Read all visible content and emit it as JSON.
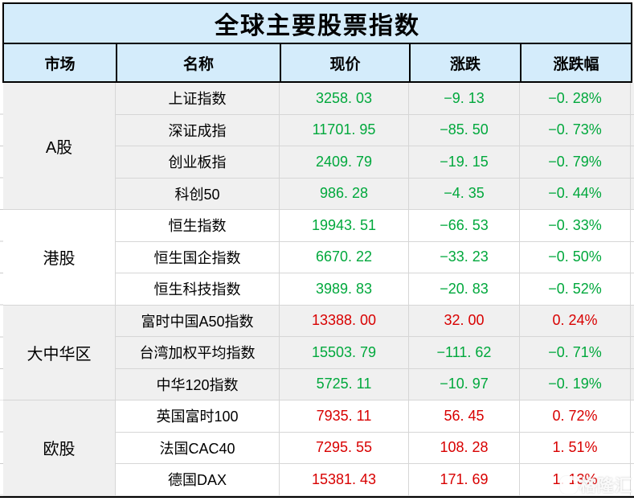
{
  "title": "全球主要股票指数",
  "columns": {
    "market": "市场",
    "name": "名称",
    "price": "现价",
    "change": "涨跌",
    "pct": "涨跌幅"
  },
  "groups": [
    {
      "market": "A股",
      "rows": [
        {
          "name": "上证指数",
          "price": "3258. 03",
          "change": "−9. 13",
          "pct": "−0. 28%",
          "dir": "down"
        },
        {
          "name": "深证成指",
          "price": "11701. 95",
          "change": "−85. 50",
          "pct": "−0. 73%",
          "dir": "down"
        },
        {
          "name": "创业板指",
          "price": "2409. 79",
          "change": "−19. 15",
          "pct": "−0. 79%",
          "dir": "down"
        },
        {
          "name": "科创50",
          "price": "986. 28",
          "change": "−4. 35",
          "pct": "−0. 44%",
          "dir": "down"
        }
      ]
    },
    {
      "market": "港股",
      "rows": [
        {
          "name": "恒生指数",
          "price": "19943. 51",
          "change": "−66. 53",
          "pct": "−0. 33%",
          "dir": "down"
        },
        {
          "name": "恒生国企指数",
          "price": "6670. 22",
          "change": "−33. 23",
          "pct": "−0. 50%",
          "dir": "down"
        },
        {
          "name": "恒生科技指数",
          "price": "3989. 83",
          "change": "−20. 83",
          "pct": "−0. 52%",
          "dir": "down"
        }
      ]
    },
    {
      "market": "大中华区",
      "rows": [
        {
          "name": "富时中国A50指数",
          "price": "13388. 00",
          "change": "32. 00",
          "pct": "0. 24%",
          "dir": "up"
        },
        {
          "name": "台湾加权平均指数",
          "price": "15503. 79",
          "change": "−111. 62",
          "pct": "−0. 71%",
          "dir": "down"
        },
        {
          "name": "中华120指数",
          "price": "5725. 11",
          "change": "−10. 97",
          "pct": "−0. 19%",
          "dir": "down"
        }
      ]
    },
    {
      "market": "欧股",
      "rows": [
        {
          "name": "英国富时100",
          "price": "7935. 11",
          "change": "56. 45",
          "pct": "0. 72%",
          "dir": "up"
        },
        {
          "name": "法国CAC40",
          "price": "7295. 55",
          "change": "108. 28",
          "pct": "1. 51%",
          "dir": "up"
        },
        {
          "name": "德国DAX",
          "price": "15381. 43",
          "change": "171. 69",
          "pct": "1. 13%",
          "dir": "up"
        }
      ]
    }
  ],
  "watermark": {
    "text": "格隆汇"
  },
  "colors": {
    "up_red": "#d80000",
    "down_green": "#00a83c",
    "header_bg": "#d4ecfb",
    "stripe_gray": "#f0f0f0",
    "grid_line": "#d6d6d6",
    "outer_border": "#000000"
  },
  "chart_data": {
    "type": "table",
    "title": "全球主要股票指数",
    "columns": [
      "市场",
      "名称",
      "现价",
      "涨跌",
      "涨跌幅"
    ],
    "rows": [
      [
        "A股",
        "上证指数",
        3258.03,
        -9.13,
        "-0.28%"
      ],
      [
        "A股",
        "深证成指",
        11701.95,
        -85.5,
        "-0.73%"
      ],
      [
        "A股",
        "创业板指",
        2409.79,
        -19.15,
        "-0.79%"
      ],
      [
        "A股",
        "科创50",
        986.28,
        -4.35,
        "-0.44%"
      ],
      [
        "港股",
        "恒生指数",
        19943.51,
        -66.53,
        "-0.33%"
      ],
      [
        "港股",
        "恒生国企指数",
        6670.22,
        -33.23,
        "-0.50%"
      ],
      [
        "港股",
        "恒生科技指数",
        3989.83,
        -20.83,
        "-0.52%"
      ],
      [
        "大中华区",
        "富时中国A50指数",
        13388.0,
        32.0,
        "0.24%"
      ],
      [
        "大中华区",
        "台湾加权平均指数",
        15503.79,
        -111.62,
        "-0.71%"
      ],
      [
        "大中华区",
        "中华120指数",
        5725.11,
        -10.97,
        "-0.19%"
      ],
      [
        "欧股",
        "英国富时100",
        7935.11,
        56.45,
        "0.72%"
      ],
      [
        "欧股",
        "法国CAC40",
        7295.55,
        108.28,
        "1.51%"
      ],
      [
        "欧股",
        "德国DAX",
        15381.43,
        171.69,
        "1.13%"
      ]
    ]
  }
}
